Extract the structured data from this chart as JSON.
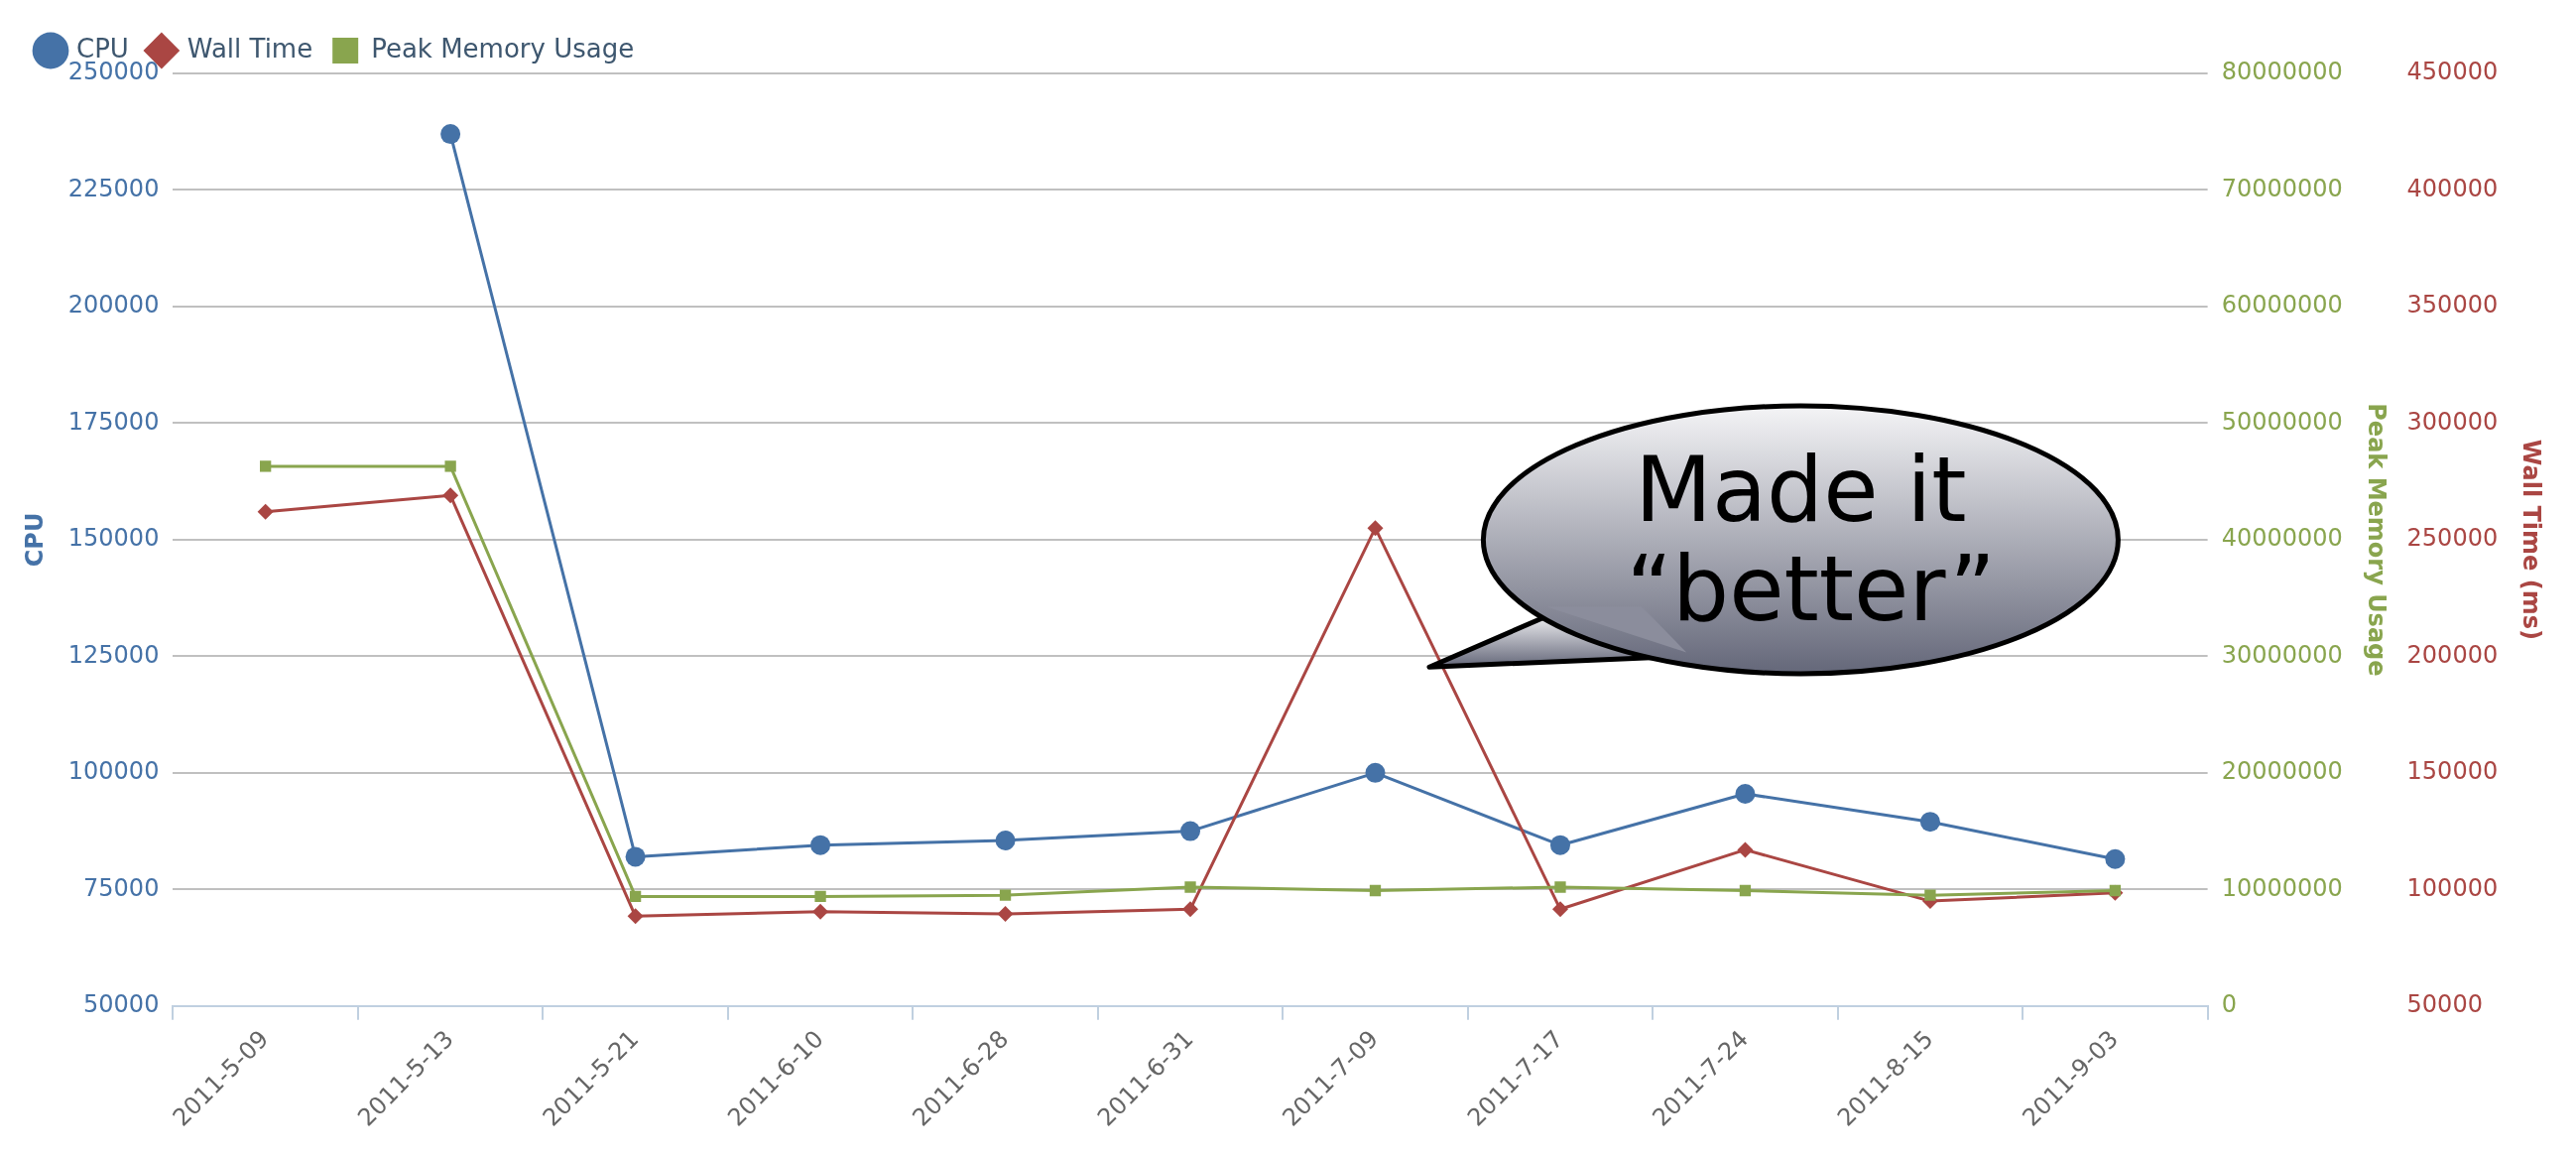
{
  "chart_data": {
    "type": "line",
    "ylabel": "CPU",
    "y2label": "Peak Memory Usage",
    "y3label": "Wall Time (ms)",
    "categories": [
      "2011-5-09",
      "2011-5-13",
      "2011-5-21",
      "2011-6-10",
      "2011-6-28",
      "2011-6-31",
      "2011-7-09",
      "2011-7-17",
      "2011-7-24",
      "2011-8-15",
      "2011-9-03"
    ],
    "series": [
      {
        "name": "CPU",
        "color": "#4572a7",
        "marker": "circle",
        "values": [
          null,
          237000,
          82000,
          84500,
          85500,
          87500,
          100000,
          84500,
          95500,
          89500,
          81500
        ]
      },
      {
        "name": "Wall Time",
        "color": "#aa4643",
        "marker": "diamond",
        "axis": "y3",
        "values": [
          262000,
          269000,
          88500,
          90500,
          89500,
          91500,
          255000,
          91500,
          117000,
          95000,
          98500
        ]
      },
      {
        "name": "Peak Memory Usage",
        "color": "#89a54e",
        "marker": "square",
        "axis": "y2",
        "values": [
          46300000,
          46300000,
          9400000,
          9400000,
          9500000,
          10200000,
          9900000,
          10200000,
          9900000,
          9500000,
          9900000
        ]
      }
    ],
    "ylim": [
      50000,
      250000
    ],
    "yticks": [
      50000,
      75000,
      100000,
      125000,
      150000,
      175000,
      200000,
      225000,
      250000
    ],
    "y2lim": [
      0,
      80000000
    ],
    "y2ticks": [
      0,
      10000000,
      20000000,
      30000000,
      40000000,
      50000000,
      60000000,
      70000000,
      80000000
    ],
    "y3lim": [
      50000,
      450000
    ],
    "y3ticks": [
      50000,
      100000,
      150000,
      200000,
      250000,
      300000,
      350000,
      400000,
      450000
    ],
    "grid": "y",
    "legend": "top left",
    "annotations": [
      "Made it “better”"
    ]
  }
}
